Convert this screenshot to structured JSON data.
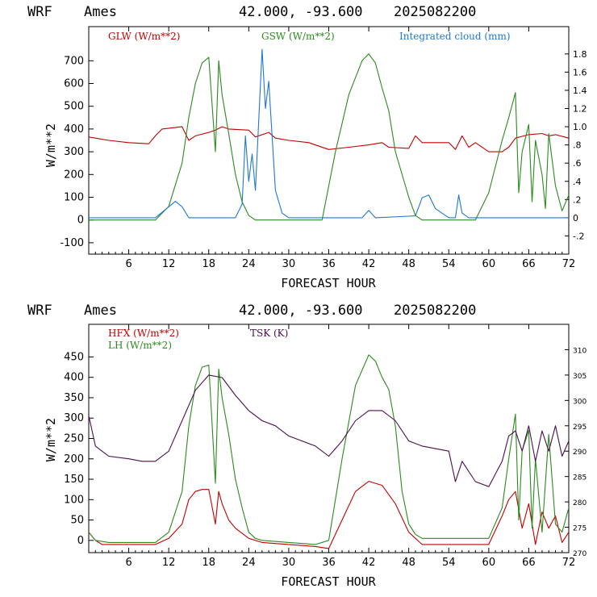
{
  "colors": {
    "red": "#c00000",
    "green": "#2a8a1e",
    "blue": "#1f77d0",
    "purple": "#4b0f4b"
  },
  "chart_data": [
    {
      "type": "line",
      "header": {
        "model": "WRF",
        "location": "Ames",
        "coords": "42.000, -93.600",
        "init": "2025082200"
      },
      "xlabel": "FORECAST HOUR",
      "ylabel": "W/m**2",
      "xlim": [
        0,
        72
      ],
      "ylim": [
        -150,
        850
      ],
      "y2lim": [
        -0.4,
        2.1
      ],
      "x_ticks": [
        6,
        12,
        18,
        24,
        30,
        36,
        42,
        48,
        54,
        60,
        66,
        72
      ],
      "y_ticks": [
        -100,
        0,
        100,
        200,
        300,
        400,
        500,
        600,
        700
      ],
      "y2_ticks": [
        {
          "v": -0.2,
          "l": "-.2"
        },
        {
          "v": 0,
          "l": "0"
        },
        {
          "v": 0.2,
          "l": ".2"
        },
        {
          "v": 0.4,
          "l": ".4"
        },
        {
          "v": 0.6,
          "l": ".6"
        },
        {
          "v": 0.8,
          "l": ".8"
        },
        {
          "v": 1.0,
          "l": "1.0"
        },
        {
          "v": 1.2,
          "l": "1.2"
        },
        {
          "v": 1.4,
          "l": "1.4"
        },
        {
          "v": 1.6,
          "l": "1.6"
        },
        {
          "v": 1.8,
          "l": "1.8"
        }
      ],
      "series": [
        {
          "name": "GLW (W/m**2)",
          "color": "red",
          "axis": "left",
          "x": [
            0,
            3,
            6,
            9,
            10,
            11,
            14,
            15,
            16,
            18,
            19,
            20,
            21,
            24,
            25,
            27,
            28,
            30,
            33,
            36,
            39,
            42,
            44,
            45,
            48,
            49,
            50,
            54,
            55,
            56,
            57,
            58,
            60,
            62,
            63,
            64,
            66,
            68,
            69,
            70,
            72
          ],
          "y": [
            365,
            350,
            340,
            335,
            370,
            400,
            410,
            350,
            370,
            385,
            395,
            410,
            400,
            395,
            365,
            385,
            360,
            350,
            340,
            310,
            320,
            330,
            340,
            320,
            315,
            370,
            340,
            340,
            310,
            370,
            320,
            340,
            300,
            300,
            320,
            360,
            375,
            380,
            370,
            375,
            360
          ]
        },
        {
          "name": "GSW (W/m**2)",
          "color": "green",
          "axis": "left",
          "x": [
            0,
            1,
            2,
            10,
            12,
            14,
            15,
            16,
            17,
            18,
            19,
            19.5,
            20,
            21,
            22,
            23,
            24,
            25,
            35,
            37,
            39,
            41,
            42,
            43,
            44,
            45,
            46,
            48,
            49,
            50,
            58,
            60,
            62,
            63,
            64,
            64.5,
            65,
            66,
            66.5,
            67,
            68,
            68.5,
            69,
            70,
            71,
            72
          ],
          "y": [
            0,
            0,
            0,
            0,
            60,
            250,
            450,
            600,
            690,
            715,
            300,
            700,
            550,
            380,
            200,
            80,
            20,
            0,
            0,
            300,
            550,
            700,
            730,
            690,
            580,
            480,
            300,
            100,
            20,
            0,
            0,
            120,
            350,
            450,
            560,
            120,
            300,
            420,
            80,
            350,
            200,
            50,
            380,
            150,
            40,
            110
          ]
        },
        {
          "name": "Integrated cloud (mm)",
          "color": "blue",
          "axis": "right",
          "x": [
            0,
            10,
            12,
            13,
            14,
            15,
            22,
            23,
            23.5,
            24,
            24.5,
            25,
            26,
            26.5,
            27,
            28,
            29,
            30,
            41,
            42,
            43,
            49,
            50,
            51,
            52,
            54,
            55,
            55.5,
            56,
            57,
            72
          ],
          "y": [
            0,
            0,
            0.12,
            0.18,
            0.12,
            0,
            0,
            0.15,
            0.9,
            0.4,
            0.7,
            0.3,
            1.85,
            1.2,
            1.5,
            0.3,
            0.05,
            0,
            0,
            0.08,
            0,
            0.02,
            0.22,
            0.25,
            0.1,
            0,
            0,
            0.25,
            0.05,
            0,
            0
          ]
        }
      ]
    },
    {
      "type": "line",
      "header": {
        "model": "WRF",
        "location": "Ames",
        "coords": "42.000, -93.600",
        "init": "2025082200"
      },
      "xlabel": "FORECAST HOUR",
      "ylabel": "W/m**2",
      "xlim": [
        0,
        72
      ],
      "ylim": [
        -30,
        530
      ],
      "y2lim": [
        270,
        315
      ],
      "x_ticks": [
        6,
        12,
        18,
        24,
        30,
        36,
        42,
        48,
        54,
        60,
        66,
        72
      ],
      "y_ticks": [
        0,
        50,
        100,
        150,
        200,
        250,
        300,
        350,
        400,
        450
      ],
      "y2_ticks": [
        {
          "v": 270,
          "l": "270"
        },
        {
          "v": 275,
          "l": "275"
        },
        {
          "v": 280,
          "l": "280"
        },
        {
          "v": 285,
          "l": "285"
        },
        {
          "v": 290,
          "l": "290"
        },
        {
          "v": 295,
          "l": "295"
        },
        {
          "v": 300,
          "l": "300"
        },
        {
          "v": 305,
          "l": "305"
        },
        {
          "v": 310,
          "l": "310"
        }
      ],
      "series": [
        {
          "name": "HFX (W/m**2)",
          "color": "red",
          "axis": "left",
          "x": [
            0,
            1,
            2,
            10,
            12,
            14,
            15,
            16,
            17,
            18,
            19,
            19.5,
            20,
            21,
            22,
            24,
            26,
            30,
            34,
            36,
            38,
            40,
            42,
            44,
            46,
            48,
            50,
            60,
            62,
            63,
            64,
            65,
            66,
            67,
            68,
            69,
            70,
            71,
            72
          ],
          "y": [
            20,
            0,
            -10,
            -10,
            5,
            40,
            100,
            120,
            125,
            125,
            40,
            120,
            90,
            50,
            30,
            5,
            -5,
            -10,
            -15,
            -20,
            50,
            120,
            145,
            135,
            90,
            20,
            -10,
            -10,
            60,
            100,
            120,
            30,
            90,
            -10,
            70,
            30,
            60,
            -5,
            20
          ]
        },
        {
          "name": "LH (W/m**2)",
          "color": "green",
          "axis": "left",
          "x": [
            0,
            1,
            3,
            10,
            12,
            14,
            15,
            16,
            17,
            18,
            19,
            19.5,
            20,
            21,
            22,
            23,
            24,
            25,
            26,
            30,
            34,
            36,
            38,
            40,
            42,
            43,
            44,
            45,
            46,
            47,
            48,
            49,
            50,
            60,
            62,
            63,
            64,
            64.5,
            65,
            66,
            66.5,
            67,
            68,
            69,
            70,
            71,
            72
          ],
          "y": [
            20,
            0,
            -5,
            -5,
            20,
            120,
            280,
            380,
            425,
            430,
            140,
            420,
            350,
            260,
            150,
            80,
            20,
            5,
            0,
            -5,
            -10,
            0,
            200,
            380,
            455,
            440,
            400,
            370,
            280,
            120,
            40,
            15,
            5,
            5,
            80,
            200,
            310,
            50,
            220,
            270,
            30,
            200,
            20,
            260,
            40,
            20,
            80
          ]
        },
        {
          "name": "TSK (K)",
          "color": "purple",
          "axis": "right",
          "x": [
            0,
            1,
            3,
            6,
            8,
            10,
            12,
            14,
            16,
            18,
            20,
            22,
            24,
            26,
            28,
            30,
            32,
            34,
            36,
            38,
            40,
            42,
            44,
            46,
            48,
            50,
            54,
            55,
            56,
            58,
            60,
            62,
            63,
            64,
            65,
            66,
            67,
            68,
            69,
            70,
            71,
            72
          ],
          "y": [
            297,
            291,
            289,
            288.5,
            288,
            288,
            290,
            296,
            302,
            305,
            304.5,
            301,
            298,
            296,
            295,
            293,
            292,
            291,
            289,
            292,
            296,
            298,
            298,
            296,
            292,
            291,
            290,
            284,
            288,
            284,
            283,
            288,
            293,
            294,
            290,
            295,
            288,
            294,
            290,
            295,
            289,
            292
          ]
        }
      ]
    }
  ]
}
